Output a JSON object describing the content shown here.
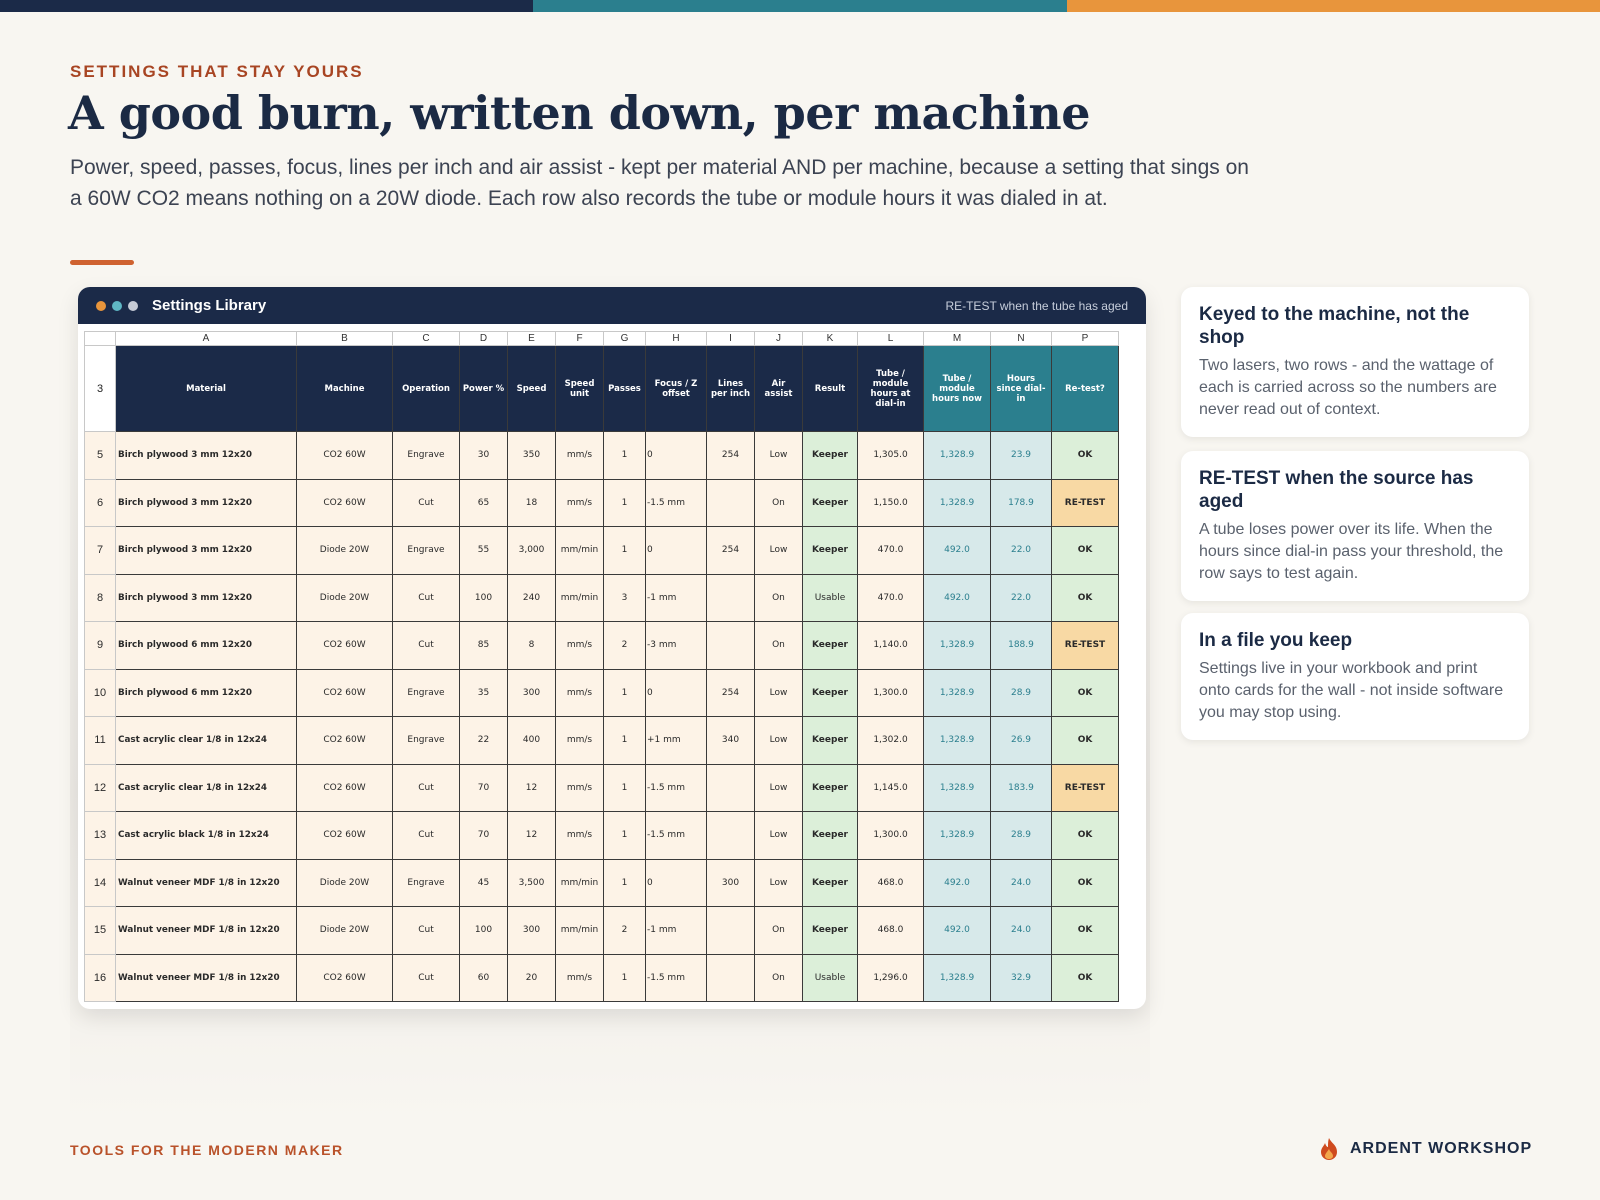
{
  "colors": {
    "navy": "#1b2a48",
    "teal": "#2b7f8e",
    "orange": "#e8953c",
    "rust": "#a84523"
  },
  "header": {
    "eyebrow": "SETTINGS THAT STAY YOURS",
    "title": "A good burn, written down, per machine",
    "subtitle": "Power, speed, passes, focus, lines per inch and air assist - kept per material AND per machine, because a setting that sings on a 60W CO2 means nothing on a 20W diode. Each row also records the tube or module hours it was dialed in at."
  },
  "window": {
    "title": "Settings Library",
    "right_note": "RE-TEST when the tube has aged",
    "dots": [
      "#e8953c",
      "#5fb7c4",
      "#c6cbd6"
    ]
  },
  "sheet": {
    "column_letters": [
      "A",
      "B",
      "C",
      "D",
      "E",
      "F",
      "G",
      "H",
      "I",
      "J",
      "K",
      "L",
      "M",
      "N",
      "P"
    ],
    "header_row_number": "3",
    "headers": [
      "Material",
      "Machine",
      "Operation",
      "Power %",
      "Speed",
      "Speed unit",
      "Passes",
      "Focus / Z offset",
      "Lines per inch",
      "Air assist",
      "Result",
      "Tube / module hours at dial-in",
      "Tube / module hours now",
      "Hours since dial-in",
      "Re-test?"
    ],
    "rows": [
      {
        "n": "5",
        "c": [
          "Birch plywood 3 mm 12x20",
          "CO2 60W",
          "Engrave",
          "30",
          "350",
          "mm/s",
          "1",
          "0",
          "254",
          "Low",
          "Keeper",
          "1,305.0",
          "1,328.9",
          "23.9",
          "OK"
        ]
      },
      {
        "n": "6",
        "c": [
          "Birch plywood 3 mm 12x20",
          "CO2 60W",
          "Cut",
          "65",
          "18",
          "mm/s",
          "1",
          "-1.5 mm",
          "",
          "On",
          "Keeper",
          "1,150.0",
          "1,328.9",
          "178.9",
          "RE-TEST"
        ]
      },
      {
        "n": "7",
        "c": [
          "Birch plywood 3 mm 12x20",
          "Diode 20W",
          "Engrave",
          "55",
          "3,000",
          "mm/min",
          "1",
          "0",
          "254",
          "Low",
          "Keeper",
          "470.0",
          "492.0",
          "22.0",
          "OK"
        ]
      },
      {
        "n": "8",
        "c": [
          "Birch plywood 3 mm 12x20",
          "Diode 20W",
          "Cut",
          "100",
          "240",
          "mm/min",
          "3",
          "-1 mm",
          "",
          "On",
          "Usable",
          "470.0",
          "492.0",
          "22.0",
          "OK"
        ]
      },
      {
        "n": "9",
        "c": [
          "Birch plywood 6 mm 12x20",
          "CO2 60W",
          "Cut",
          "85",
          "8",
          "mm/s",
          "2",
          "-3 mm",
          "",
          "On",
          "Keeper",
          "1,140.0",
          "1,328.9",
          "188.9",
          "RE-TEST"
        ]
      },
      {
        "n": "10",
        "c": [
          "Birch plywood 6 mm 12x20",
          "CO2 60W",
          "Engrave",
          "35",
          "300",
          "mm/s",
          "1",
          "0",
          "254",
          "Low",
          "Keeper",
          "1,300.0",
          "1,328.9",
          "28.9",
          "OK"
        ]
      },
      {
        "n": "11",
        "c": [
          "Cast acrylic clear 1/8 in 12x24",
          "CO2 60W",
          "Engrave",
          "22",
          "400",
          "mm/s",
          "1",
          "+1 mm",
          "340",
          "Low",
          "Keeper",
          "1,302.0",
          "1,328.9",
          "26.9",
          "OK"
        ]
      },
      {
        "n": "12",
        "c": [
          "Cast acrylic clear 1/8 in 12x24",
          "CO2 60W",
          "Cut",
          "70",
          "12",
          "mm/s",
          "1",
          "-1.5 mm",
          "",
          "Low",
          "Keeper",
          "1,145.0",
          "1,328.9",
          "183.9",
          "RE-TEST"
        ]
      },
      {
        "n": "13",
        "c": [
          "Cast acrylic black 1/8 in 12x24",
          "CO2 60W",
          "Cut",
          "70",
          "12",
          "mm/s",
          "1",
          "-1.5 mm",
          "",
          "Low",
          "Keeper",
          "1,300.0",
          "1,328.9",
          "28.9",
          "OK"
        ]
      },
      {
        "n": "14",
        "c": [
          "Walnut veneer MDF 1/8 in 12x20",
          "Diode 20W",
          "Engrave",
          "45",
          "3,500",
          "mm/min",
          "1",
          "0",
          "300",
          "Low",
          "Keeper",
          "468.0",
          "492.0",
          "24.0",
          "OK"
        ]
      },
      {
        "n": "15",
        "c": [
          "Walnut veneer MDF 1/8 in 12x20",
          "Diode 20W",
          "Cut",
          "100",
          "300",
          "mm/min",
          "2",
          "-1 mm",
          "",
          "On",
          "Keeper",
          "468.0",
          "492.0",
          "24.0",
          "OK"
        ]
      },
      {
        "n": "16",
        "c": [
          "Walnut veneer MDF 1/8 in 12x20",
          "CO2 60W",
          "Cut",
          "60",
          "20",
          "mm/s",
          "1",
          "-1.5 mm",
          "",
          "On",
          "Usable",
          "1,296.0",
          "1,328.9",
          "32.9",
          "OK"
        ]
      }
    ]
  },
  "cards": [
    {
      "title": "Keyed to the machine, not the shop",
      "body": "Two lasers, two rows - and the wattage of each is carried across so the numbers are never read out of context."
    },
    {
      "title": "RE-TEST when the source has aged",
      "body": "A tube loses power over its life. When the hours since dial-in pass your threshold, the row says to test again."
    },
    {
      "title": "In a file you keep",
      "body": "Settings live in your workbook and print onto cards for the wall - not inside software you may stop using."
    }
  ],
  "footer": {
    "tagline": "TOOLS FOR THE MODERN MAKER",
    "brand": "ARDENT WORKSHOP",
    "brand_icon": "flame-icon"
  }
}
